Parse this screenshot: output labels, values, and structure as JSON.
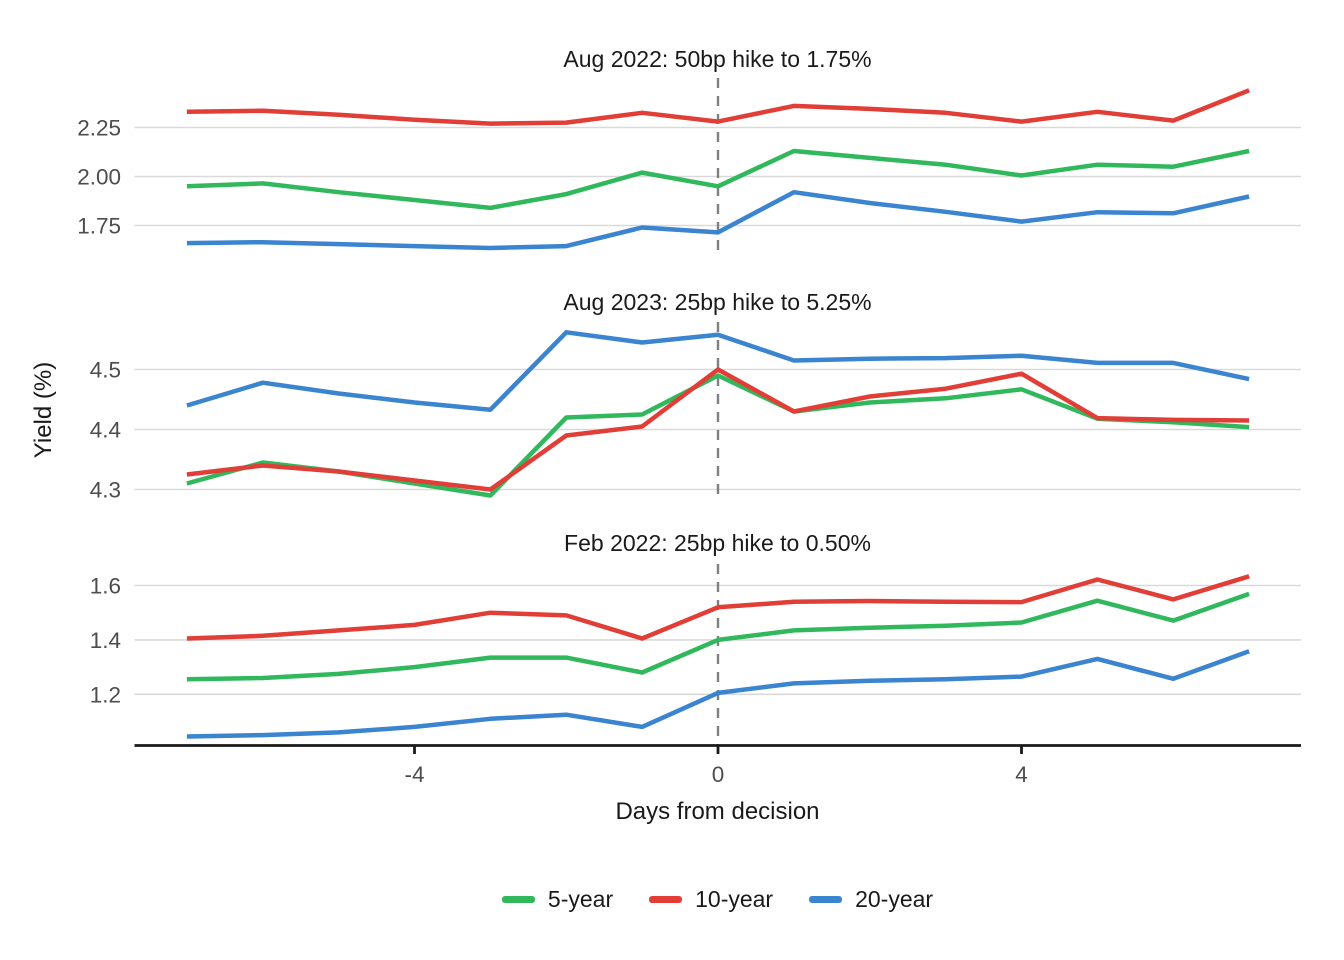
{
  "chart_data": {
    "type": "line",
    "title": "",
    "xlabel": "Days from decision",
    "ylabel": "Yield (%)",
    "x": [
      -7,
      -6,
      -5,
      -4,
      -3,
      -2,
      -1,
      0,
      1,
      2,
      3,
      4,
      5,
      6,
      7
    ],
    "xtick_values": [
      -4,
      0,
      4
    ],
    "xtick_labels": [
      "-4",
      "0",
      "4"
    ],
    "decision_line_x": 0,
    "grid": "horizontal-gridlines-only",
    "legend_position": "bottom",
    "legend": [
      "5-year",
      "10-year",
      "20-year"
    ],
    "colors": {
      "5-year": "#31b85c",
      "10-year": "#e03e36",
      "20-year": "#3a84d0",
      "gridline": "#d9d9d9",
      "axis_line": "#1a1a1a",
      "decision_line": "#7f7f7f",
      "tick_text": "#4d4d4d",
      "title_text": "#1a1a1a"
    },
    "panels": [
      {
        "title": "Aug 2022: 50bp hike to 1.75%",
        "ytick_values": [
          2.25,
          2.0,
          1.75
        ],
        "ytick_labels": [
          "2.25",
          "2.00",
          "1.75"
        ],
        "ylim": [
          1.57,
          2.51
        ],
        "series": [
          {
            "name": "5-year",
            "values": [
              1.95,
              1.965,
              1.92,
              1.88,
              1.84,
              1.91,
              2.02,
              1.95,
              2.13,
              2.095,
              2.06,
              2.005,
              2.06,
              2.05,
              2.13
            ]
          },
          {
            "name": "10-year",
            "values": [
              2.33,
              2.335,
              2.315,
              2.29,
              2.27,
              2.275,
              2.325,
              2.28,
              2.36,
              2.345,
              2.325,
              2.28,
              2.33,
              2.285,
              2.44
            ]
          },
          {
            "name": "20-year",
            "values": [
              1.66,
              1.665,
              1.655,
              1.645,
              1.635,
              1.645,
              1.74,
              1.715,
              1.92,
              1.865,
              1.82,
              1.77,
              1.818,
              1.812,
              1.898
            ]
          }
        ]
      },
      {
        "title": "Aug 2023: 25bp hike to 5.25%",
        "ytick_values": [
          4.5,
          4.4,
          4.3
        ],
        "ytick_labels": [
          "4.5",
          "4.4",
          "4.3"
        ],
        "ylim": [
          4.278,
          4.585
        ],
        "series": [
          {
            "name": "5-year",
            "values": [
              4.31,
              4.345,
              4.33,
              4.31,
              4.29,
              4.42,
              4.425,
              4.49,
              4.43,
              4.445,
              4.452,
              4.467,
              4.418,
              4.412,
              4.404
            ]
          },
          {
            "name": "10-year",
            "values": [
              4.325,
              4.34,
              4.33,
              4.315,
              4.3,
              4.39,
              4.405,
              4.5,
              4.43,
              4.455,
              4.468,
              4.493,
              4.419,
              4.416,
              4.415
            ]
          },
          {
            "name": "20-year",
            "values": [
              4.44,
              4.478,
              4.46,
              4.445,
              4.433,
              4.562,
              4.545,
              4.558,
              4.515,
              4.518,
              4.519,
              4.523,
              4.511,
              4.511,
              4.484
            ]
          }
        ]
      },
      {
        "title": "Feb 2022: 25bp hike to 0.50%",
        "ytick_values": [
          1.6,
          1.4,
          1.2
        ],
        "ytick_labels": [
          "1.6",
          "1.4",
          "1.2"
        ],
        "ylim": [
          1.012,
          1.688
        ],
        "series": [
          {
            "name": "5-year",
            "values": [
              1.255,
              1.26,
              1.275,
              1.3,
              1.335,
              1.335,
              1.28,
              1.4,
              1.435,
              1.445,
              1.452,
              1.464,
              1.544,
              1.471,
              1.569
            ]
          },
          {
            "name": "10-year",
            "values": [
              1.405,
              1.415,
              1.435,
              1.455,
              1.5,
              1.49,
              1.405,
              1.52,
              1.54,
              1.543,
              1.54,
              1.539,
              1.622,
              1.549,
              1.634
            ]
          },
          {
            "name": "20-year",
            "values": [
              1.045,
              1.05,
              1.06,
              1.08,
              1.11,
              1.125,
              1.08,
              1.205,
              1.24,
              1.25,
              1.255,
              1.265,
              1.33,
              1.257,
              1.358
            ]
          }
        ]
      }
    ]
  }
}
